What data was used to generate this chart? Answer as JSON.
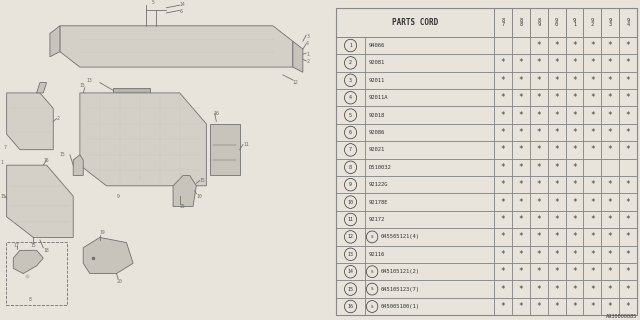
{
  "diagram_id": "A930000085",
  "bg_color": "#e8e4dc",
  "table_bg": "#e8e4dc",
  "col_headers": [
    "8\n7",
    "8\n8",
    "8\n9",
    "9\n0",
    "9\n1",
    "9\n2",
    "9\n3",
    "9\n4"
  ],
  "rows": [
    {
      "num": "1",
      "part": "94066",
      "s": false,
      "marks": [
        0,
        0,
        1,
        1,
        1,
        1,
        1,
        1
      ]
    },
    {
      "num": "2",
      "part": "92081",
      "s": false,
      "marks": [
        1,
        1,
        1,
        1,
        1,
        1,
        1,
        1
      ]
    },
    {
      "num": "3",
      "part": "92011",
      "s": false,
      "marks": [
        1,
        1,
        1,
        1,
        1,
        1,
        1,
        1
      ]
    },
    {
      "num": "4",
      "part": "92011A",
      "s": false,
      "marks": [
        1,
        1,
        1,
        1,
        1,
        1,
        1,
        1
      ]
    },
    {
      "num": "5",
      "part": "92018",
      "s": false,
      "marks": [
        1,
        1,
        1,
        1,
        1,
        1,
        1,
        1
      ]
    },
    {
      "num": "6",
      "part": "92086",
      "s": false,
      "marks": [
        1,
        1,
        1,
        1,
        1,
        1,
        1,
        1
      ]
    },
    {
      "num": "7",
      "part": "92021",
      "s": false,
      "marks": [
        1,
        1,
        1,
        1,
        1,
        1,
        1,
        1
      ]
    },
    {
      "num": "8",
      "part": "D510032",
      "s": false,
      "marks": [
        1,
        1,
        1,
        1,
        1,
        0,
        0,
        0
      ]
    },
    {
      "num": "9",
      "part": "92122G",
      "s": false,
      "marks": [
        1,
        1,
        1,
        1,
        1,
        1,
        1,
        1
      ]
    },
    {
      "num": "10",
      "part": "92178E",
      "s": false,
      "marks": [
        1,
        1,
        1,
        1,
        1,
        1,
        1,
        1
      ]
    },
    {
      "num": "11",
      "part": "92172",
      "s": false,
      "marks": [
        1,
        1,
        1,
        1,
        1,
        1,
        1,
        1
      ]
    },
    {
      "num": "12",
      "part": "045505121(4)",
      "s": true,
      "marks": [
        1,
        1,
        1,
        1,
        1,
        1,
        1,
        1
      ]
    },
    {
      "num": "13",
      "part": "92116",
      "s": false,
      "marks": [
        1,
        1,
        1,
        1,
        1,
        1,
        1,
        1
      ]
    },
    {
      "num": "14",
      "part": "045105121(2)",
      "s": true,
      "marks": [
        1,
        1,
        1,
        1,
        1,
        1,
        1,
        1
      ]
    },
    {
      "num": "15",
      "part": "045105123(7)",
      "s": true,
      "marks": [
        1,
        1,
        1,
        1,
        1,
        1,
        1,
        1
      ]
    },
    {
      "num": "16",
      "part": "045005100(1)",
      "s": true,
      "marks": [
        1,
        1,
        1,
        1,
        1,
        1,
        1,
        1
      ]
    }
  ],
  "draw_color": "#707070",
  "line_color": "#909090",
  "face_light": "#d4d0c8",
  "face_dark": "#b8b4ac",
  "face_mid": "#c8c4bc"
}
